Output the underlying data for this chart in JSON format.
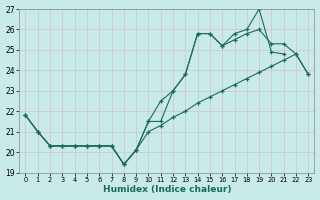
{
  "xlabel": "Humidex (Indice chaleur)",
  "background_color": "#c8eae8",
  "grid_color": "#d4c8c8",
  "line_color": "#1a6b5a",
  "xlim": [
    -0.5,
    23.5
  ],
  "ylim": [
    19,
    27
  ],
  "xticks": [
    0,
    1,
    2,
    3,
    4,
    5,
    6,
    7,
    8,
    9,
    10,
    11,
    12,
    13,
    14,
    15,
    16,
    17,
    18,
    19,
    20,
    21,
    22,
    23
  ],
  "yticks": [
    19,
    20,
    21,
    22,
    23,
    24,
    25,
    26,
    27
  ],
  "line1_x": [
    0,
    1,
    2,
    3,
    4,
    5,
    6,
    7,
    8,
    9,
    10,
    11,
    12,
    13,
    14,
    15,
    16,
    17,
    18,
    19,
    20,
    21
  ],
  "line1_y": [
    21.8,
    21.0,
    20.3,
    20.3,
    20.3,
    20.3,
    20.3,
    20.3,
    19.4,
    20.1,
    21.5,
    21.5,
    23.0,
    23.8,
    25.8,
    25.8,
    25.2,
    25.8,
    26.0,
    27.0,
    24.9,
    24.8
  ],
  "line2_x": [
    0,
    1,
    2,
    3,
    4,
    5,
    6,
    7,
    8,
    9,
    10,
    11,
    12,
    13,
    14,
    15,
    16,
    17,
    18,
    19,
    20,
    21,
    22,
    23
  ],
  "line2_y": [
    21.8,
    21.0,
    20.3,
    20.3,
    20.3,
    20.3,
    20.3,
    20.3,
    19.4,
    20.1,
    21.5,
    22.5,
    23.0,
    23.8,
    25.8,
    25.8,
    25.2,
    25.5,
    25.8,
    26.0,
    25.3,
    25.3,
    24.8,
    23.8
  ],
  "line3_x": [
    0,
    1,
    2,
    3,
    4,
    5,
    6,
    7,
    8,
    9,
    10,
    11,
    12,
    13,
    14,
    15,
    16,
    17,
    18,
    19,
    20,
    21,
    22,
    23
  ],
  "line3_y": [
    21.8,
    21.0,
    20.3,
    20.3,
    20.3,
    20.3,
    20.3,
    20.3,
    19.4,
    20.1,
    21.0,
    21.3,
    21.7,
    22.0,
    22.4,
    22.7,
    23.0,
    23.3,
    23.6,
    23.9,
    24.2,
    24.5,
    24.8,
    23.8
  ]
}
